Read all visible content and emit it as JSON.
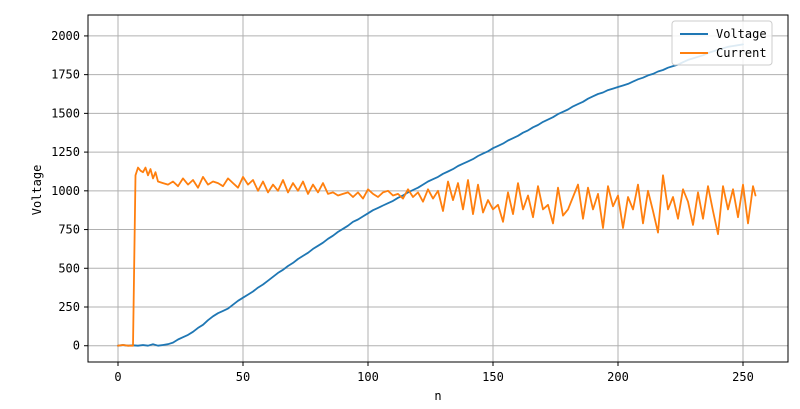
{
  "chart_data": {
    "type": "line",
    "xlabel": "n",
    "ylabel": "Voltage",
    "xlim": [
      -12,
      268
    ],
    "ylim": [
      -105,
      2135
    ],
    "xticks": [
      0,
      50,
      100,
      150,
      200,
      250
    ],
    "yticks": [
      0,
      250,
      500,
      750,
      1000,
      1250,
      1500,
      1750,
      2000
    ],
    "grid": true,
    "legend_position": "top-right",
    "series": [
      {
        "name": "Voltage",
        "color": "#1f77b4",
        "x": [
          0,
          2,
          4,
          6,
          8,
          10,
          12,
          14,
          16,
          18,
          20,
          22,
          24,
          26,
          28,
          30,
          32,
          34,
          36,
          38,
          40,
          42,
          44,
          46,
          48,
          50,
          52,
          54,
          56,
          58,
          60,
          62,
          64,
          66,
          68,
          70,
          72,
          74,
          76,
          78,
          80,
          82,
          84,
          86,
          88,
          90,
          92,
          94,
          96,
          98,
          100,
          102,
          104,
          106,
          108,
          110,
          112,
          114,
          116,
          118,
          120,
          122,
          124,
          126,
          128,
          130,
          132,
          134,
          136,
          138,
          140,
          142,
          144,
          146,
          148,
          150,
          152,
          154,
          156,
          158,
          160,
          162,
          164,
          166,
          168,
          170,
          172,
          174,
          176,
          178,
          180,
          182,
          184,
          186,
          188,
          190,
          192,
          194,
          196,
          198,
          200,
          202,
          204,
          206,
          208,
          210,
          212,
          214,
          216,
          218,
          220,
          222,
          224,
          226,
          228,
          230,
          232,
          234,
          236,
          238,
          240,
          242,
          244,
          246,
          248,
          250
        ],
        "y": [
          0,
          5,
          0,
          3,
          0,
          5,
          0,
          10,
          0,
          5,
          10,
          20,
          40,
          55,
          70,
          90,
          115,
          135,
          165,
          190,
          210,
          225,
          240,
          265,
          290,
          310,
          330,
          350,
          375,
          395,
          420,
          445,
          470,
          490,
          515,
          535,
          560,
          580,
          600,
          625,
          645,
          665,
          690,
          710,
          735,
          755,
          775,
          800,
          815,
          835,
          855,
          875,
          890,
          905,
          920,
          935,
          955,
          970,
          990,
          1005,
          1020,
          1040,
          1060,
          1075,
          1090,
          1110,
          1125,
          1140,
          1160,
          1175,
          1190,
          1205,
          1225,
          1240,
          1255,
          1275,
          1290,
          1305,
          1325,
          1340,
          1355,
          1375,
          1390,
          1410,
          1425,
          1445,
          1460,
          1475,
          1495,
          1510,
          1525,
          1545,
          1560,
          1575,
          1595,
          1610,
          1625,
          1635,
          1650,
          1660,
          1670,
          1680,
          1690,
          1705,
          1720,
          1730,
          1745,
          1755,
          1770,
          1780,
          1795,
          1805,
          1815,
          1830,
          1845,
          1855,
          1865,
          1875,
          1890,
          1900,
          1910,
          1920,
          1930,
          1935,
          1940,
          1945
        ]
      },
      {
        "name": "Current",
        "color": "#ff7f0e",
        "x": [
          0,
          2,
          4,
          6,
          7,
          8,
          9,
          10,
          11,
          12,
          13,
          14,
          15,
          16,
          18,
          20,
          22,
          24,
          26,
          28,
          30,
          32,
          34,
          36,
          38,
          40,
          42,
          44,
          46,
          48,
          50,
          52,
          54,
          56,
          58,
          60,
          62,
          64,
          66,
          68,
          70,
          72,
          74,
          76,
          78,
          80,
          82,
          84,
          86,
          88,
          90,
          92,
          94,
          96,
          98,
          100,
          102,
          104,
          106,
          108,
          110,
          112,
          114,
          116,
          118,
          120,
          122,
          124,
          126,
          128,
          130,
          132,
          134,
          136,
          138,
          140,
          142,
          144,
          146,
          148,
          150,
          152,
          154,
          156,
          158,
          160,
          162,
          164,
          166,
          168,
          170,
          172,
          174,
          176,
          178,
          180,
          182,
          184,
          186,
          188,
          190,
          192,
          194,
          196,
          198,
          200,
          202,
          204,
          206,
          208,
          210,
          212,
          214,
          216,
          218,
          220,
          222,
          224,
          226,
          228,
          230,
          232,
          234,
          236,
          238,
          240,
          242,
          244,
          246,
          248,
          250,
          252,
          254,
          255
        ],
        "y": [
          0,
          5,
          0,
          0,
          1100,
          1150,
          1130,
          1120,
          1150,
          1100,
          1140,
          1080,
          1120,
          1060,
          1050,
          1040,
          1060,
          1030,
          1080,
          1040,
          1070,
          1020,
          1090,
          1040,
          1060,
          1050,
          1030,
          1080,
          1050,
          1020,
          1090,
          1040,
          1070,
          1000,
          1060,
          990,
          1040,
          1000,
          1070,
          990,
          1050,
          1000,
          1060,
          980,
          1040,
          990,
          1050,
          980,
          990,
          970,
          980,
          990,
          960,
          990,
          950,
          1010,
          980,
          960,
          990,
          1000,
          970,
          980,
          950,
          1010,
          960,
          990,
          930,
          1010,
          950,
          1000,
          870,
          1060,
          940,
          1050,
          880,
          1070,
          850,
          1040,
          860,
          940,
          880,
          910,
          800,
          990,
          850,
          1050,
          880,
          970,
          830,
          1030,
          880,
          910,
          790,
          1020,
          840,
          880,
          960,
          1040,
          820,
          1020,
          880,
          980,
          760,
          1030,
          900,
          970,
          760,
          960,
          880,
          1040,
          790,
          1000,
          870,
          730,
          1100,
          880,
          960,
          820,
          1010,
          930,
          780,
          990,
          820,
          1030,
          870,
          720,
          1030,
          880,
          1010,
          830,
          1040,
          790,
          1030,
          970
        ]
      }
    ]
  }
}
